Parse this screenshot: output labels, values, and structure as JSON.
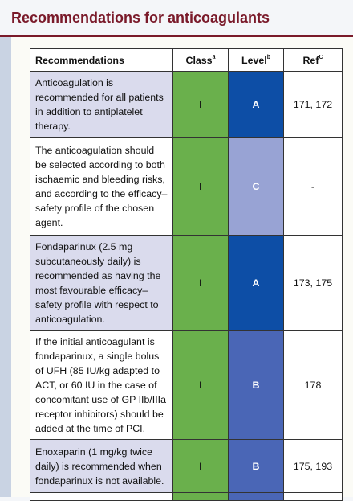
{
  "header": {
    "title": "Recommendations for anticoagulants"
  },
  "table": {
    "columns": [
      {
        "text": "Recommendations",
        "sup": null
      },
      {
        "text": "Class",
        "sup": "a"
      },
      {
        "text": "Level",
        "sup": "b"
      },
      {
        "text": "Ref",
        "sup": "C"
      }
    ],
    "rows": [
      [
        "Anticoagulation is recommended for all patients in addition to antiplatelet therapy.",
        "I",
        "A",
        "171, 172"
      ],
      [
        "The anticoagulation should be selected according to both ischaemic and bleeding risks, and according to the efficacy–safety profile of the chosen agent.",
        "I",
        "C",
        "-"
      ],
      [
        "Fondaparinux (2.5 mg subcutaneously daily) is recommended as having the most favourable efficacy–safety profile with respect to anticoagulation.",
        "I",
        "A",
        "173, 175"
      ],
      [
        "If the initial anticoagulant is fondaparinux, a single bolus of UFH (85 IU/kg adapted to ACT, or 60 IU in the case of concomitant use of GP IIb/IIIa receptor inhibitors) should be added at the time of PCI.",
        "I",
        "B",
        "178"
      ],
      [
        "Enoxaparin (1 mg/kg twice daily) is recommended when fondaparinux is not available.",
        "I",
        "B",
        "175, 193"
      ]
    ],
    "level_colors": [
      "#0d4ea6",
      "#98a3d4",
      "#0d4ea6",
      "#4a66b6",
      "#4a66b6"
    ]
  }
}
